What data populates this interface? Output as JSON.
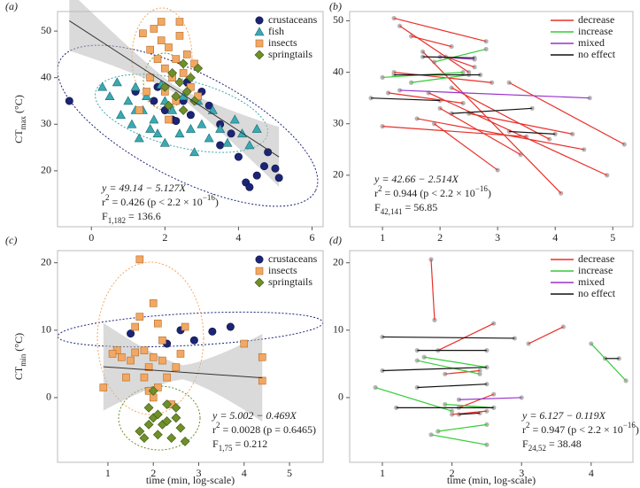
{
  "chart_data": [
    {
      "type": "scatter",
      "panel_label": "(a)",
      "ylabel": [
        "CT",
        "max",
        " (°C)"
      ],
      "xlim": [
        -0.92,
        6.3
      ],
      "xticks": [
        0,
        2,
        4,
        6
      ],
      "ylim": [
        8,
        54.2
      ],
      "yticks": [
        20,
        30,
        40,
        50
      ],
      "fit": {
        "intercept": 49.14,
        "slope": -5.127
      },
      "stats": {
        "eq": "y = 49.14 − 5.127X",
        "r2": [
          "r",
          "2",
          " = 0.426 (p < 2.2 × 10",
          "−16",
          ")"
        ],
        "F": [
          "F",
          "1,182",
          " = 136.6"
        ]
      },
      "series": [
        {
          "name": "crustaceans",
          "color": "#1c2477",
          "marker": "circle",
          "x": [
            1.2,
            1.7,
            1.8,
            2.0,
            2.2,
            2.5,
            2.6,
            2.7,
            3.0,
            3.2,
            3.5,
            3.8,
            4.0,
            4.2,
            4.3,
            4.5,
            4.7,
            4.8,
            5.0,
            5.1,
            -0.6,
            3.5,
            2.3
          ],
          "y": [
            37,
            35,
            38,
            33,
            31,
            35,
            39,
            32,
            37,
            34,
            30,
            28,
            23,
            17.5,
            16.5,
            19,
            21,
            24,
            20.5,
            18.5,
            35,
            25.5,
            30.7
          ]
        },
        {
          "name": "fish",
          "color": "#3aa9b2",
          "marker": "triangle",
          "x": [
            0.3,
            0.5,
            0.7,
            0.8,
            1.0,
            1.1,
            1.2,
            1.3,
            1.4,
            1.5,
            1.6,
            1.7,
            1.8,
            2.0,
            2.0,
            2.2,
            2.4,
            2.5,
            2.7,
            2.9,
            3.0,
            3.2,
            3.3,
            3.5,
            3.7,
            3.9,
            4.1,
            4.3,
            4.5,
            2.8,
            1.9,
            1.2
          ],
          "y": [
            38,
            36,
            39,
            32,
            35,
            30,
            38,
            27,
            33,
            36,
            29,
            31,
            28,
            35,
            26,
            33,
            28,
            36,
            29,
            35,
            30,
            27,
            33,
            29,
            26,
            31,
            28,
            25.5,
            29,
            24,
            38.5,
            33
          ]
        },
        {
          "name": "insects",
          "color": "#f2a862",
          "marker": "square",
          "x": [
            1.4,
            1.6,
            1.7,
            1.8,
            1.9,
            2.0,
            2.1,
            2.2,
            2.3,
            2.4,
            2.5,
            2.6,
            2.7,
            2.8,
            1.5,
            1.6,
            2.0,
            2.9,
            1.3,
            2.1,
            2.3,
            1.9,
            2.4
          ],
          "y": [
            49.5,
            46,
            50.5,
            44,
            48,
            42,
            46.5,
            40,
            44,
            49,
            41,
            45,
            38,
            43,
            37,
            40,
            37,
            36,
            33,
            31,
            35,
            52,
            52
          ]
        },
        {
          "name": "springtails",
          "color": "#6e8f2a",
          "marker": "diamond",
          "x": [
            2.0,
            2.2,
            2.3,
            2.4,
            2.5,
            2.6,
            2.7,
            2.8,
            2.9,
            2.5,
            2.1
          ],
          "y": [
            38,
            41,
            36,
            39,
            43,
            37,
            40,
            35,
            42,
            33,
            34
          ]
        }
      ]
    },
    {
      "type": "line",
      "panel_label": "(b)",
      "xlim": [
        0.43,
        5.35
      ],
      "xticks": [
        1,
        2,
        3,
        4,
        5
      ],
      "ylim": [
        10,
        51.8
      ],
      "yticks": [
        20,
        30,
        40,
        50
      ],
      "stats": {
        "eq": "y = 42.66 − 2.514X",
        "r2": [
          "r",
          "2",
          " = 0.944 (p < 2.2 × 10",
          "−16",
          ")"
        ],
        "F": [
          "F",
          "42,141",
          " = 56.85"
        ]
      },
      "series": [
        {
          "name": "decrease",
          "color": "#e8302a",
          "segments": [
            {
              "x": [
                1.0,
                3.5
              ],
              "y": [
                29.5,
                27.5
              ]
            },
            {
              "x": [
                1.2,
                2.8
              ],
              "y": [
                50.5,
                46
              ]
            },
            {
              "x": [
                1.3,
                2.5
              ],
              "y": [
                49,
                40
              ]
            },
            {
              "x": [
                1.5,
                2.2
              ],
              "y": [
                47,
                45
              ]
            },
            {
              "x": [
                1.7,
                4.1
              ],
              "y": [
                44,
                16.5
              ]
            },
            {
              "x": [
                1.8,
                4.9
              ],
              "y": [
                36,
                20
              ]
            },
            {
              "x": [
                2.0,
                3.4
              ],
              "y": [
                33,
                24
              ]
            },
            {
              "x": [
                1.2,
                2.9
              ],
              "y": [
                40,
                38
              ]
            },
            {
              "x": [
                2.2,
                3.9
              ],
              "y": [
                37,
                27
              ]
            },
            {
              "x": [
                1.6,
                4.5
              ],
              "y": [
                31,
                25
              ]
            },
            {
              "x": [
                3.2,
                5.2
              ],
              "y": [
                38,
                26
              ]
            },
            {
              "x": [
                2.5,
                4.3
              ],
              "y": [
                32,
                28
              ]
            },
            {
              "x": [
                1.9,
                3.0
              ],
              "y": [
                30,
                21
              ]
            },
            {
              "x": [
                2.1,
                2.6
              ],
              "y": [
                43,
                41
              ]
            },
            {
              "x": [
                1.1,
                2.4
              ],
              "y": [
                36,
                34
              ]
            }
          ]
        },
        {
          "name": "increase",
          "color": "#33cc33",
          "segments": [
            {
              "x": [
                1.0,
                2.4
              ],
              "y": [
                39,
                40
              ]
            },
            {
              "x": [
                1.9,
                2.8
              ],
              "y": [
                42,
                44.5
              ]
            },
            {
              "x": [
                1.5,
                2.5
              ],
              "y": [
                38,
                39.5
              ]
            }
          ]
        },
        {
          "name": "mixed",
          "color": "#9933cc",
          "segments": [
            {
              "x": [
                1.3,
                4.6
              ],
              "y": [
                36.5,
                35
              ]
            },
            {
              "x": [
                2.0,
                2.6
              ],
              "y": [
                43,
                42.5
              ]
            }
          ]
        },
        {
          "name": "no effect",
          "color": "#111111",
          "segments": [
            {
              "x": [
                0.8,
                2.0
              ],
              "y": [
                35,
                34.5
              ]
            },
            {
              "x": [
                2.2,
                3.6
              ],
              "y": [
                32,
                33
              ]
            },
            {
              "x": [
                3.2,
                4.0
              ],
              "y": [
                28.5,
                28
              ]
            },
            {
              "x": [
                1.7,
                2.6
              ],
              "y": [
                43,
                42.8
              ]
            },
            {
              "x": [
                1.2,
                2.7
              ],
              "y": [
                39.5,
                39.5
              ]
            }
          ]
        }
      ]
    },
    {
      "type": "scatter",
      "panel_label": "(c)",
      "ylabel": [
        "CT",
        "min",
        " (°C)"
      ],
      "xlabel": "time (min, log-scale)",
      "xlim": [
        -0.11,
        5.74
      ],
      "xticks": [
        1,
        2,
        3,
        4,
        5
      ],
      "ylim": [
        -9.6,
        21.8
      ],
      "yticks": [
        0,
        10,
        20
      ],
      "fit": {
        "intercept": 5.002,
        "slope": -0.469
      },
      "stats": {
        "eq": "y = 5.002 − 0.469X",
        "r2": [
          "r",
          "2",
          " = 0.0028 (p = 0.6465)"
        ],
        "F": [
          "F",
          "1,75",
          " = 0.212"
        ]
      },
      "series": [
        {
          "name": "crustaceans",
          "color": "#1c2477",
          "marker": "circle",
          "x": [
            1.5,
            2.6,
            2.9,
            3.3,
            3.7,
            2.3
          ],
          "y": [
            9.5,
            10,
            8.5,
            9.8,
            10.5,
            8
          ]
        },
        {
          "name": "insects",
          "color": "#f2a862",
          "marker": "square",
          "x": [
            0.9,
            1.2,
            1.3,
            1.5,
            1.6,
            1.7,
            1.7,
            1.8,
            1.8,
            1.9,
            2.0,
            2.0,
            2.1,
            2.1,
            2.2,
            2.3,
            2.4,
            2.5,
            2.6,
            1.4,
            1.9,
            2.0,
            1.6,
            1.1,
            4.0,
            4.4,
            4.4,
            2.7,
            2.2
          ],
          "y": [
            1.5,
            7,
            6,
            5.5,
            10.5,
            12,
            20.5,
            7,
            3,
            4.5,
            14,
            6,
            11,
            1.5,
            5.5,
            3,
            -1,
            4.5,
            6.5,
            3,
            1,
            0,
            6.7,
            6.5,
            8,
            6,
            2.5,
            10.5,
            8.5
          ]
        },
        {
          "name": "springtails",
          "color": "#6e8f2a",
          "marker": "diamond",
          "x": [
            1.7,
            1.8,
            1.9,
            2.0,
            2.1,
            2.2,
            2.3,
            2.4,
            2.5,
            2.6,
            2.7,
            2.1,
            2.3,
            1.9,
            2.5,
            2.0
          ],
          "y": [
            -5,
            -6,
            -1.5,
            -3,
            -2.5,
            -4,
            -1,
            -6,
            -3,
            -4.5,
            -6.5,
            -5.5,
            -3.5,
            -4,
            -1.5,
            1
          ]
        }
      ]
    },
    {
      "type": "line",
      "panel_label": "(d)",
      "xlabel": "time (min, log-scale)",
      "xlim": [
        0.53,
        4.6
      ],
      "xticks": [
        1,
        2,
        3,
        4
      ],
      "ylim": [
        -9.6,
        21.8
      ],
      "yticks": [
        0,
        10,
        20
      ],
      "stats": {
        "eq": "y = 6.127 − 0.119X",
        "r2": [
          "r",
          "2",
          " = 0.947 (p < 2.2 × 10",
          "−16",
          ")"
        ],
        "F": [
          "F",
          "24,52",
          " = 38.48"
        ]
      },
      "series": [
        {
          "name": "decrease",
          "color": "#e8302a",
          "segments": [
            {
              "x": [
                1.7,
                1.75
              ],
              "y": [
                20.5,
                11.5
              ]
            },
            {
              "x": [
                1.8,
                2.6
              ],
              "y": [
                7,
                11
              ]
            },
            {
              "x": [
                3.1,
                3.6
              ],
              "y": [
                8,
                10.5
              ]
            },
            {
              "x": [
                2.1,
                2.6
              ],
              "y": [
                -1.5,
                0.5
              ]
            },
            {
              "x": [
                2.0,
                2.5
              ],
              "y": [
                -2.5,
                -2
              ]
            },
            {
              "x": [
                1.9,
                2.4
              ],
              "y": [
                3.5,
                4
              ]
            }
          ]
        },
        {
          "name": "increase",
          "color": "#33cc33",
          "segments": [
            {
              "x": [
                0.9,
                2.0
              ],
              "y": [
                1.5,
                -2
              ]
            },
            {
              "x": [
                1.6,
                2.5
              ],
              "y": [
                6,
                4.5
              ]
            },
            {
              "x": [
                1.5,
                2.4
              ],
              "y": [
                5.5,
                3.5
              ]
            },
            {
              "x": [
                1.8,
                2.5
              ],
              "y": [
                -5,
                -4
              ]
            },
            {
              "x": [
                1.7,
                2.5
              ],
              "y": [
                -5.5,
                -7
              ]
            },
            {
              "x": [
                4.0,
                4.5
              ],
              "y": [
                8,
                2.5
              ]
            },
            {
              "x": [
                1.9,
                2.6
              ],
              "y": [
                -1,
                -1.5
              ]
            }
          ]
        },
        {
          "name": "mixed",
          "color": "#9933cc",
          "segments": [
            {
              "x": [
                2.1,
                3.0
              ],
              "y": [
                -0.3,
                0
              ]
            }
          ]
        },
        {
          "name": "no effect",
          "color": "#111111",
          "segments": [
            {
              "x": [
                1.0,
                2.9
              ],
              "y": [
                9,
                8.8
              ]
            },
            {
              "x": [
                1.5,
                2.5
              ],
              "y": [
                7,
                7
              ]
            },
            {
              "x": [
                1.0,
                2.5
              ],
              "y": [
                4,
                4.5
              ]
            },
            {
              "x": [
                1.2,
                2.6
              ],
              "y": [
                -1.5,
                -1.5
              ]
            },
            {
              "x": [
                1.5,
                2.5
              ],
              "y": [
                1.5,
                2
              ]
            },
            {
              "x": [
                4.2,
                4.4
              ],
              "y": [
                5.8,
                5.8
              ]
            },
            {
              "x": [
                2.1,
                2.4
              ],
              "y": [
                -2.5,
                -2.3
              ]
            }
          ]
        }
      ]
    }
  ]
}
